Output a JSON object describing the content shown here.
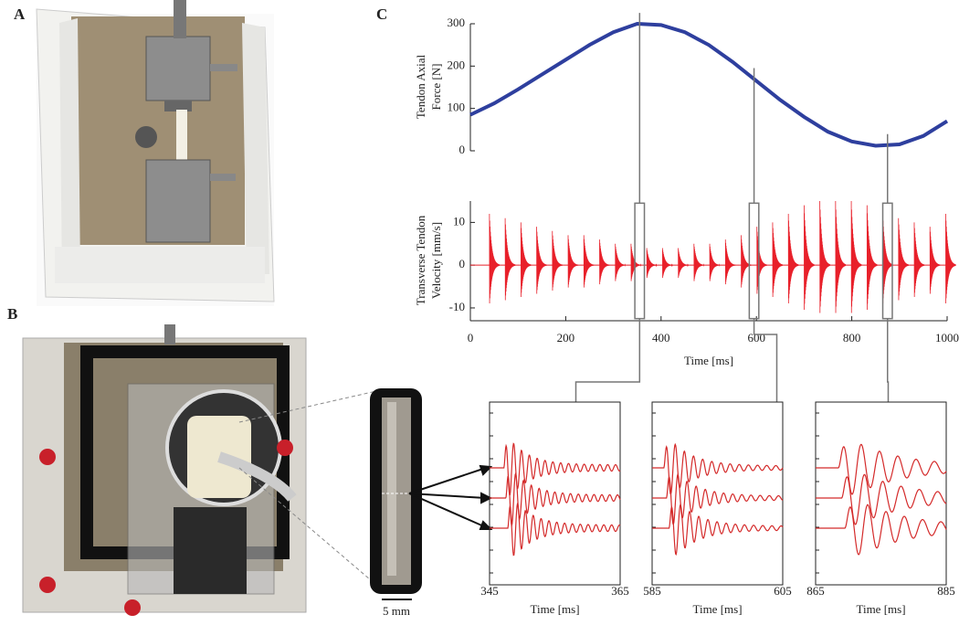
{
  "labels": {
    "a": "A",
    "b": "B",
    "c": "C"
  },
  "scale_bar": "5 mm",
  "chart_data": [
    {
      "type": "line",
      "ylabel": [
        "Tendon Axial",
        "Force [N]"
      ],
      "x": [
        0,
        50,
        100,
        150,
        200,
        250,
        300,
        350,
        400,
        450,
        500,
        550,
        600,
        650,
        700,
        750,
        800,
        850,
        900,
        950,
        1000
      ],
      "values": [
        85,
        112,
        145,
        180,
        215,
        250,
        280,
        300,
        297,
        280,
        250,
        210,
        165,
        120,
        80,
        45,
        22,
        12,
        15,
        35,
        70
      ],
      "color": "#2e3f9e",
      "xlim": [
        0,
        1000
      ],
      "ylim": [
        0,
        300
      ],
      "yticks": [
        0,
        100,
        200,
        300
      ]
    },
    {
      "type": "bursts",
      "ylabel": [
        "Transverse Tendon",
        "Velocity [mm/s]"
      ],
      "xlabel": "Time [ms]",
      "x": [
        40,
        73,
        106,
        139,
        172,
        205,
        238,
        271,
        304,
        337,
        370,
        403,
        436,
        469,
        502,
        535,
        568,
        601,
        634,
        667,
        700,
        733,
        766,
        799,
        832,
        865,
        898,
        931,
        964,
        997
      ],
      "values": [
        12,
        11,
        10,
        9,
        8,
        7,
        7,
        6,
        5,
        5,
        4,
        4,
        4,
        5,
        5,
        6,
        7,
        9,
        10,
        12,
        14,
        15,
        15,
        15,
        14,
        12,
        11,
        10,
        9,
        12
      ],
      "color": "#e8202a",
      "xlim": [
        0,
        1000
      ],
      "ylim": [
        -13,
        15
      ],
      "xticks": [
        0,
        200,
        400,
        600,
        800,
        1000
      ],
      "yticks": [
        -10,
        0,
        10
      ]
    },
    {
      "type": "wave",
      "xlabel": "Time [ms]",
      "xlim": [
        345,
        365
      ],
      "xticks": [
        345,
        365
      ],
      "onsets": [
        347.2,
        347.5,
        347.8
      ],
      "period": 1.2,
      "color": "#d42a2a"
    },
    {
      "type": "wave",
      "xlabel": "Time [ms]",
      "xlim": [
        585,
        605
      ],
      "xticks": [
        585,
        605
      ],
      "onsets": [
        586.8,
        587.2,
        587.6
      ],
      "period": 1.4,
      "color": "#d42a2a"
    },
    {
      "type": "wave",
      "xlabel": "Time [ms]",
      "xlim": [
        865,
        885
      ],
      "xticks": [
        865,
        885
      ],
      "onsets": [
        868.5,
        869,
        869.5
      ],
      "period": 2.8,
      "color": "#d42a2a"
    }
  ]
}
